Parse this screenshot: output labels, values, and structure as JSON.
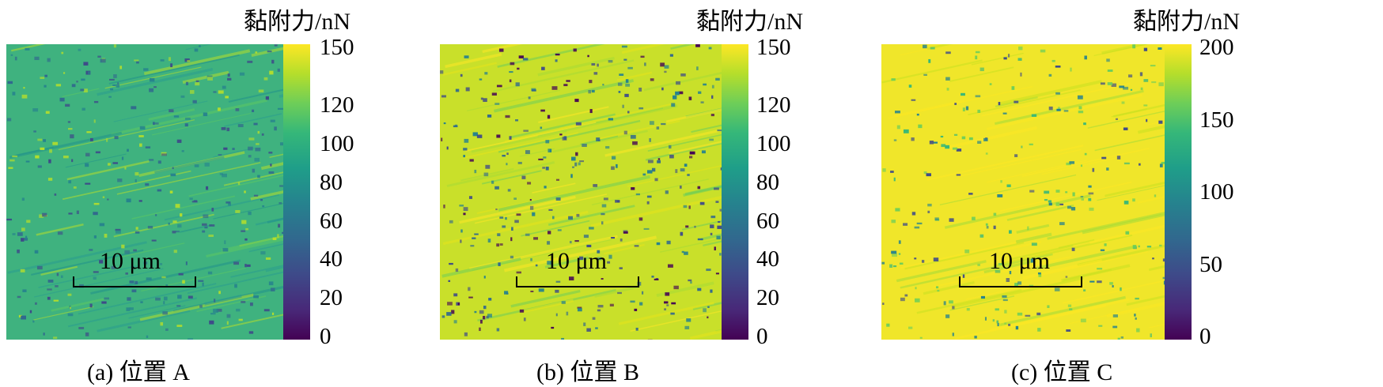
{
  "panels": [
    {
      "caption": "(a) 位置 A",
      "colorbar_title": "黏附力/nN",
      "ticks": [
        "150",
        "120",
        "100",
        "80",
        "60",
        "40",
        "20",
        "0"
      ],
      "tick_values": [
        150,
        120,
        100,
        80,
        60,
        40,
        20,
        0
      ],
      "range": [
        0,
        150
      ],
      "scale_label": "10 μm",
      "base_color": "#3fb27f",
      "seed": 11
    },
    {
      "caption": "(b) 位置 B",
      "colorbar_title": "黏附力/nN",
      "ticks": [
        "150",
        "120",
        "100",
        "80",
        "60",
        "40",
        "20",
        "0"
      ],
      "tick_values": [
        150,
        120,
        100,
        80,
        60,
        40,
        20,
        0
      ],
      "range": [
        0,
        150
      ],
      "scale_label": "10 μm",
      "base_color": "#c9e02a",
      "seed": 23
    },
    {
      "caption": "(c) 位置 C",
      "colorbar_title": "黏附力/nN",
      "ticks": [
        "200",
        "150",
        "100",
        "50",
        "0"
      ],
      "tick_values": [
        200,
        150,
        100,
        50,
        0
      ],
      "range": [
        0,
        200
      ],
      "scale_label": "10 μm",
      "base_color": "#f0e62a",
      "seed": 37
    }
  ],
  "colormap": [
    "#440154",
    "#3e4a89",
    "#26828e",
    "#35b779",
    "#b5de2b",
    "#fde725"
  ]
}
